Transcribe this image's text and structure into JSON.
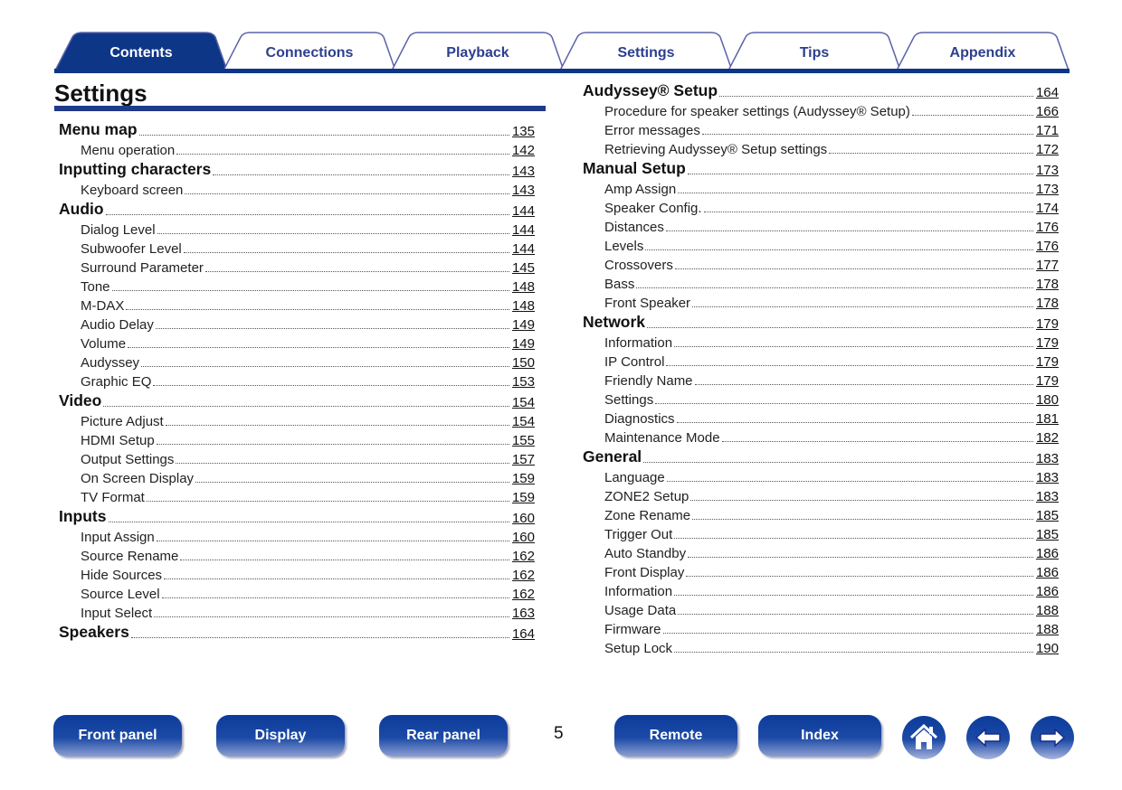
{
  "tabs": [
    {
      "label": "Contents",
      "active": true
    },
    {
      "label": "Connections"
    },
    {
      "label": "Playback"
    },
    {
      "label": "Settings"
    },
    {
      "label": "Tips"
    },
    {
      "label": "Appendix"
    }
  ],
  "title": "Settings",
  "left": [
    {
      "level": "h",
      "label": "Menu map",
      "page": "135"
    },
    {
      "level": "i",
      "label": "Menu operation",
      "page": "142"
    },
    {
      "level": "h",
      "label": "Inputting characters",
      "page": "143"
    },
    {
      "level": "i",
      "label": "Keyboard screen",
      "page": "143"
    },
    {
      "level": "h",
      "label": "Audio",
      "page": "144"
    },
    {
      "level": "i",
      "label": "Dialog Level",
      "page": "144"
    },
    {
      "level": "i",
      "label": "Subwoofer Level",
      "page": "144"
    },
    {
      "level": "i",
      "label": "Surround Parameter",
      "page": "145"
    },
    {
      "level": "i",
      "label": "Tone",
      "page": "148"
    },
    {
      "level": "i",
      "label": "M-DAX",
      "page": "148"
    },
    {
      "level": "i",
      "label": "Audio Delay",
      "page": "149"
    },
    {
      "level": "i",
      "label": "Volume",
      "page": "149"
    },
    {
      "level": "i",
      "label": "Audyssey",
      "page": "150"
    },
    {
      "level": "i",
      "label": "Graphic EQ",
      "page": "153"
    },
    {
      "level": "h",
      "label": "Video",
      "page": "154"
    },
    {
      "level": "i",
      "label": "Picture Adjust",
      "page": "154"
    },
    {
      "level": "i",
      "label": "HDMI Setup",
      "page": "155"
    },
    {
      "level": "i",
      "label": "Output Settings",
      "page": "157"
    },
    {
      "level": "i",
      "label": "On Screen Display",
      "page": "159"
    },
    {
      "level": "i",
      "label": "TV Format",
      "page": "159"
    },
    {
      "level": "h",
      "label": "Inputs",
      "page": "160"
    },
    {
      "level": "i",
      "label": "Input Assign",
      "page": "160"
    },
    {
      "level": "i",
      "label": "Source Rename",
      "page": "162"
    },
    {
      "level": "i",
      "label": "Hide Sources",
      "page": "162"
    },
    {
      "level": "i",
      "label": "Source Level",
      "page": "162"
    },
    {
      "level": "i",
      "label": "Input Select",
      "page": "163"
    },
    {
      "level": "h",
      "label": "Speakers",
      "page": "164"
    }
  ],
  "right": [
    {
      "level": "h",
      "label": "Audyssey® Setup",
      "page": "164"
    },
    {
      "level": "i",
      "label": "Procedure for speaker settings (Audyssey® Setup)",
      "page": "166"
    },
    {
      "level": "i",
      "label": "Error messages",
      "page": "171"
    },
    {
      "level": "i",
      "label": "Retrieving Audyssey® Setup settings",
      "page": "172"
    },
    {
      "level": "h",
      "label": "Manual Setup",
      "page": "173"
    },
    {
      "level": "i",
      "label": "Amp Assign",
      "page": "173"
    },
    {
      "level": "i",
      "label": "Speaker Config.",
      "page": "174"
    },
    {
      "level": "i",
      "label": "Distances",
      "page": "176"
    },
    {
      "level": "i",
      "label": "Levels",
      "page": "176"
    },
    {
      "level": "i",
      "label": "Crossovers",
      "page": "177"
    },
    {
      "level": "i",
      "label": "Bass",
      "page": "178"
    },
    {
      "level": "i",
      "label": "Front Speaker",
      "page": "178"
    },
    {
      "level": "h",
      "label": "Network",
      "page": "179"
    },
    {
      "level": "i",
      "label": "Information",
      "page": "179"
    },
    {
      "level": "i",
      "label": "IP Control",
      "page": "179"
    },
    {
      "level": "i",
      "label": "Friendly Name",
      "page": "179"
    },
    {
      "level": "i",
      "label": "Settings",
      "page": "180"
    },
    {
      "level": "i",
      "label": "Diagnostics",
      "page": "181"
    },
    {
      "level": "i",
      "label": "Maintenance Mode",
      "page": "182"
    },
    {
      "level": "h",
      "label": "General",
      "page": "183"
    },
    {
      "level": "i",
      "label": "Language",
      "page": "183"
    },
    {
      "level": "i",
      "label": "ZONE2 Setup",
      "page": "183"
    },
    {
      "level": "i",
      "label": "Zone Rename",
      "page": "185"
    },
    {
      "level": "i",
      "label": "Trigger Out",
      "page": "185"
    },
    {
      "level": "i",
      "label": "Auto Standby",
      "page": "186"
    },
    {
      "level": "i",
      "label": "Front Display",
      "page": "186"
    },
    {
      "level": "i",
      "label": "Information",
      "page": "186"
    },
    {
      "level": "i",
      "label": "Usage Data",
      "page": "188"
    },
    {
      "level": "i",
      "label": "Firmware",
      "page": "188"
    },
    {
      "level": "i",
      "label": "Setup Lock",
      "page": "190"
    }
  ],
  "footer": {
    "front_panel": "Front panel",
    "display": "Display",
    "rear_panel": "Rear panel",
    "page_number": "5",
    "remote": "Remote",
    "index": "Index",
    "icons": [
      "home-icon",
      "back-arrow-icon",
      "forward-arrow-icon"
    ]
  },
  "colors": {
    "brand": "#0e3687"
  }
}
